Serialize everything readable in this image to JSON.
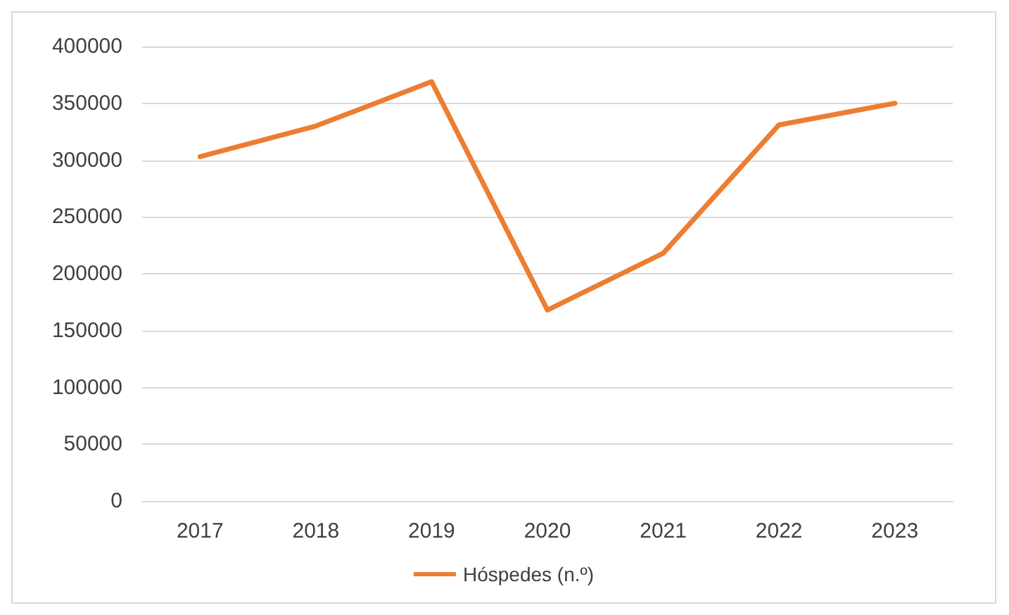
{
  "chart_data": {
    "type": "line",
    "categories": [
      "2017",
      "2018",
      "2019",
      "2020",
      "2021",
      "2022",
      "2023"
    ],
    "series": [
      {
        "name": "Hóspedes (n.º)",
        "color": "#ed7d31",
        "values": [
          303000,
          330000,
          369000,
          168000,
          218000,
          331000,
          350000
        ]
      }
    ],
    "ylim": [
      0,
      400000
    ],
    "yticks": [
      0,
      50000,
      100000,
      150000,
      200000,
      250000,
      300000,
      350000,
      400000
    ],
    "grid": "y",
    "legend": "bottom",
    "marker": "none",
    "line_style": "solid"
  }
}
